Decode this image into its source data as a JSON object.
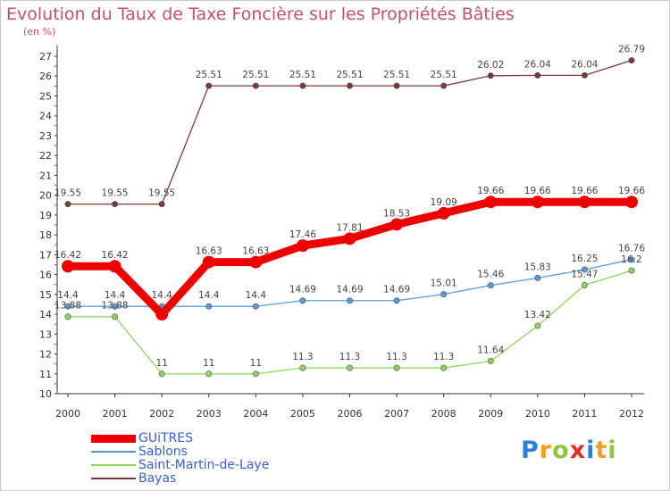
{
  "title": "Evolution du Taux de Taxe Foncière sur les Propriétés Bâties",
  "subtitle": "(en %)",
  "logo": {
    "text": "Proxiti",
    "letters": [
      {
        "ch": "P",
        "color": "#2f7fd8"
      },
      {
        "ch": "r",
        "color": "#f0a020"
      },
      {
        "ch": "o",
        "color": "#8cc63e"
      },
      {
        "ch": "x",
        "color": "#e0302a"
      },
      {
        "ch": "i",
        "color": "#2f7fd8"
      },
      {
        "ch": "t",
        "color": "#f0a020"
      },
      {
        "ch": "i",
        "color": "#8cc63e"
      }
    ]
  },
  "chart_data": {
    "type": "line",
    "title": "Evolution du Taux de Taxe Foncière sur les Propriétés Bâties",
    "ylabel": "(en %)",
    "xlabel": "",
    "x": [
      "2000",
      "2001",
      "2002",
      "2003",
      "2004",
      "2005",
      "2006",
      "2007",
      "2008",
      "2009",
      "2010",
      "2011",
      "2012"
    ],
    "ylim": [
      10,
      27
    ],
    "yticks": [
      "10",
      "11",
      "12",
      "13",
      "14",
      "15",
      "16",
      "17",
      "18",
      "19",
      "20",
      "21",
      "22",
      "23",
      "24",
      "25",
      "26",
      "27"
    ],
    "grid": false,
    "legend_position": "bottom-left",
    "series": [
      {
        "name": "GUiTRES",
        "color": "#ee0000",
        "thick": true,
        "values": [
          16.42,
          16.42,
          14,
          16.63,
          16.63,
          17.46,
          17.81,
          18.53,
          19.09,
          19.66,
          19.66,
          19.66,
          19.66
        ],
        "labels": [
          "16.42",
          "16.42",
          "",
          "16.63",
          "16.63",
          "17.46",
          "17.81",
          "18.53",
          "19.09",
          "19.66",
          "19.66",
          "19.66",
          "19.66"
        ]
      },
      {
        "name": "Sablons",
        "color": "#5b9bd5",
        "thick": false,
        "values": [
          14.4,
          14.4,
          14.4,
          14.4,
          14.4,
          14.69,
          14.69,
          14.69,
          15.01,
          15.46,
          15.83,
          16.25,
          16.76
        ],
        "labels": [
          "14.4",
          "14.4",
          "14.4",
          "14.4",
          "14.4",
          "14.69",
          "14.69",
          "14.69",
          "15.01",
          "15.46",
          "15.83",
          "16.25",
          "16.76"
        ]
      },
      {
        "name": "Saint-Martin-de-Laye",
        "color": "#8fd45a",
        "thick": false,
        "values": [
          13.88,
          13.88,
          11,
          11,
          11,
          11.3,
          11.3,
          11.3,
          11.3,
          11.64,
          13.42,
          15.47,
          16.2
        ],
        "labels": [
          "13.88",
          "13.88",
          "11",
          "11",
          "11",
          "11.3",
          "11.3",
          "11.3",
          "11.3",
          "11.64",
          "13.42",
          "15.47",
          "16.2"
        ]
      },
      {
        "name": "Bayas",
        "color": "#7a3a3a",
        "thick": false,
        "values": [
          19.55,
          19.55,
          19.55,
          25.51,
          25.51,
          25.51,
          25.51,
          25.51,
          25.51,
          26.02,
          26.04,
          26.04,
          26.79
        ],
        "labels": [
          "19.55",
          "19.55",
          "19.55",
          "25.51",
          "25.51",
          "25.51",
          "25.51",
          "25.51",
          "25.51",
          "26.02",
          "26.04",
          "26.04",
          "26.79"
        ]
      }
    ]
  }
}
